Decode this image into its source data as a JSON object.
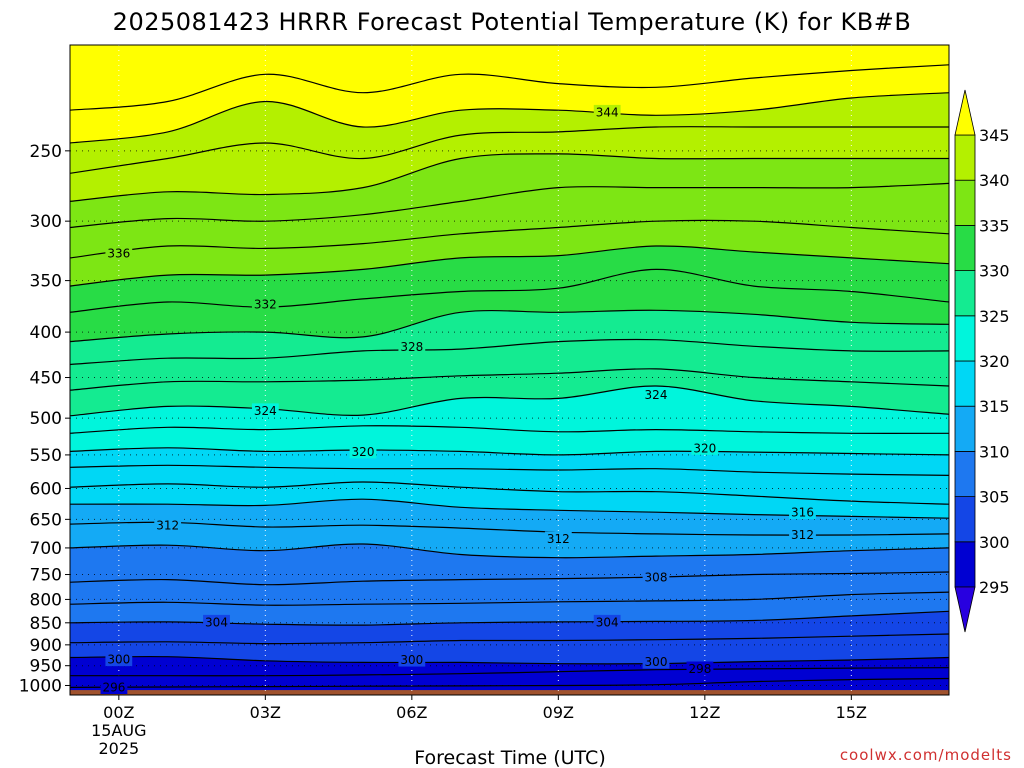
{
  "title": "2025081423 HRRR Forecast Potential Temperature (K) for KB#B",
  "credit": "coolwx.com/modelts",
  "colors": {
    "ground": "#a0522d",
    "bands": [
      {
        "from": 290,
        "to": 295,
        "color": "#2800e0"
      },
      {
        "from": 295,
        "to": 300,
        "color": "#0000d2"
      },
      {
        "from": 300,
        "to": 305,
        "color": "#1446e6"
      },
      {
        "from": 305,
        "to": 310,
        "color": "#1e78f0"
      },
      {
        "from": 310,
        "to": 315,
        "color": "#14aaf5"
      },
      {
        "from": 315,
        "to": 320,
        "color": "#00d7f5"
      },
      {
        "from": 320,
        "to": 325,
        "color": "#00f5dc"
      },
      {
        "from": 325,
        "to": 330,
        "color": "#14eb91"
      },
      {
        "from": 330,
        "to": 335,
        "color": "#28dc46"
      },
      {
        "from": 335,
        "to": 340,
        "color": "#7de614"
      },
      {
        "from": 340,
        "to": 345,
        "color": "#b4f000"
      },
      {
        "from": 345,
        "to": 350,
        "color": "#ffff00"
      }
    ]
  },
  "chart_data": {
    "type": "heatmap",
    "title": "2025081423 HRRR Forecast Potential Temperature (K) for KB#B",
    "xlabel": "Forecast Time (UTC)",
    "ylabel": "",
    "x_ticks": [
      {
        "hour": 0,
        "label": "00Z",
        "sub1": "15AUG",
        "sub2": "2025"
      },
      {
        "hour": 3,
        "label": "03Z",
        "sub1": "",
        "sub2": ""
      },
      {
        "hour": 6,
        "label": "06Z",
        "sub1": "",
        "sub2": ""
      },
      {
        "hour": 9,
        "label": "09Z",
        "sub1": "",
        "sub2": ""
      },
      {
        "hour": 12,
        "label": "12Z",
        "sub1": "",
        "sub2": ""
      },
      {
        "hour": 15,
        "label": "15Z",
        "sub1": "",
        "sub2": ""
      }
    ],
    "xlim": [
      -1,
      17
    ],
    "ylim_hpa": [
      1025,
      190
    ],
    "y_axis": "pressure (hPa, log scale, inverted)",
    "y_ticks": [
      250,
      300,
      350,
      400,
      450,
      500,
      550,
      600,
      650,
      700,
      750,
      800,
      850,
      900,
      950,
      1000
    ],
    "y_tick_labels": [
      "250",
      "300",
      "350",
      "400",
      "450",
      "500",
      "550",
      "600",
      "650",
      "700",
      "750",
      "800",
      "850",
      "900",
      "950",
      "1000"
    ],
    "colorbar": {
      "ticks": [
        295,
        300,
        305,
        310,
        315,
        320,
        325,
        330,
        335,
        340,
        345
      ],
      "labels": [
        "295",
        "300",
        "305",
        "310",
        "315",
        "320",
        "325",
        "330",
        "335",
        "340",
        "345"
      ],
      "extend": "both"
    },
    "hours": [
      -1,
      1,
      3,
      5,
      7,
      9,
      11,
      13,
      15,
      17
    ],
    "isentropes": [
      {
        "theta": 296,
        "pressure": [
          1005,
          1004,
          1003,
          1002,
          1001,
          1000,
          998,
          990,
          985,
          982
        ]
      },
      {
        "theta": 298,
        "pressure": [
          975,
          975,
          975,
          973,
          970,
          965,
          960,
          958,
          956,
          955
        ]
      },
      {
        "theta": 300,
        "pressure": [
          930,
          928,
          938,
          942,
          942,
          945,
          945,
          940,
          936,
          930
        ]
      },
      {
        "theta": 302,
        "pressure": [
          895,
          893,
          897,
          895,
          890,
          890,
          888,
          885,
          880,
          875
        ]
      },
      {
        "theta": 304,
        "pressure": [
          850,
          848,
          853,
          855,
          850,
          848,
          847,
          845,
          835,
          825
        ]
      },
      {
        "theta": 306,
        "pressure": [
          810,
          806,
          812,
          810,
          808,
          805,
          803,
          800,
          790,
          785
        ]
      },
      {
        "theta": 308,
        "pressure": [
          765,
          760,
          770,
          763,
          760,
          758,
          755,
          750,
          748,
          745
        ]
      },
      {
        "theta": 310,
        "pressure": [
          700,
          695,
          705,
          693,
          712,
          718,
          715,
          712,
          705,
          700
        ]
      },
      {
        "theta": 312,
        "pressure": [
          658,
          655,
          663,
          660,
          665,
          672,
          675,
          677,
          677,
          675
        ]
      },
      {
        "theta": 314,
        "pressure": [
          625,
          625,
          627,
          617,
          630,
          635,
          638,
          642,
          645,
          648
        ]
      },
      {
        "theta": 316,
        "pressure": [
          598,
          593,
          598,
          590,
          598,
          605,
          605,
          612,
          620,
          625
        ]
      },
      {
        "theta": 318,
        "pressure": [
          568,
          565,
          568,
          570,
          570,
          572,
          570,
          575,
          578,
          580
        ]
      },
      {
        "theta": 320,
        "pressure": [
          545,
          540,
          545,
          543,
          545,
          550,
          545,
          546,
          548,
          550
        ]
      },
      {
        "theta": 322,
        "pressure": [
          520,
          512,
          515,
          510,
          512,
          518,
          515,
          518,
          520,
          520
        ]
      },
      {
        "theta": 324,
        "pressure": [
          497,
          485,
          488,
          496,
          475,
          475,
          460,
          478,
          485,
          495
        ]
      },
      {
        "theta": 326,
        "pressure": [
          465,
          455,
          455,
          453,
          448,
          445,
          440,
          450,
          455,
          460
        ]
      },
      {
        "theta": 328,
        "pressure": [
          435,
          428,
          428,
          420,
          418,
          410,
          408,
          415,
          420,
          420
        ]
      },
      {
        "theta": 330,
        "pressure": [
          410,
          402,
          400,
          405,
          380,
          380,
          378,
          382,
          390,
          392
        ]
      },
      {
        "theta": 332,
        "pressure": [
          380,
          370,
          375,
          367,
          360,
          357,
          340,
          355,
          360,
          370
        ]
      },
      {
        "theta": 334,
        "pressure": [
          355,
          345,
          345,
          340,
          330,
          328,
          320,
          325,
          330,
          335
        ]
      },
      {
        "theta": 336,
        "pressure": [
          330,
          320,
          322,
          318,
          310,
          305,
          300,
          300,
          305,
          310
        ]
      },
      {
        "theta": 338,
        "pressure": [
          305,
          298,
          300,
          295,
          285,
          275,
          275,
          275,
          275,
          272
        ]
      },
      {
        "theta": 340,
        "pressure": [
          285,
          278,
          280,
          275,
          255,
          252,
          255,
          255,
          255,
          255
        ]
      },
      {
        "theta": 342,
        "pressure": [
          265,
          255,
          245,
          255,
          240,
          238,
          235,
          235,
          235,
          235
        ]
      },
      {
        "theta": 344,
        "pressure": [
          245,
          238,
          220,
          235,
          225,
          225,
          228,
          225,
          218,
          215
        ]
      },
      {
        "theta": 346,
        "pressure": [
          225,
          220,
          205,
          215,
          205,
          210,
          212,
          207,
          203,
          200
        ]
      }
    ],
    "contour_labels": [
      {
        "text": "296",
        "hour": -0.1,
        "pressure": 1004
      },
      {
        "text": "300",
        "hour": 0,
        "pressure": 934
      },
      {
        "text": "300",
        "hour": 6,
        "pressure": 935
      },
      {
        "text": "300",
        "hour": 11,
        "pressure": 940
      },
      {
        "text": "298",
        "hour": 11.9,
        "pressure": 957
      },
      {
        "text": "304",
        "hour": 2,
        "pressure": 848
      },
      {
        "text": "304",
        "hour": 10,
        "pressure": 848
      },
      {
        "text": "308",
        "hour": 11,
        "pressure": 755
      },
      {
        "text": "312",
        "hour": 1,
        "pressure": 660
      },
      {
        "text": "312",
        "hour": 9,
        "pressure": 683
      },
      {
        "text": "312",
        "hour": 14,
        "pressure": 676
      },
      {
        "text": "316",
        "hour": 14,
        "pressure": 638
      },
      {
        "text": "320",
        "hour": 5,
        "pressure": 545
      },
      {
        "text": "320",
        "hour": 12,
        "pressure": 540
      },
      {
        "text": "324",
        "hour": 3,
        "pressure": 490
      },
      {
        "text": "324",
        "hour": 11,
        "pressure": 470
      },
      {
        "text": "328",
        "hour": 6,
        "pressure": 415
      },
      {
        "text": "332",
        "hour": 3,
        "pressure": 372
      },
      {
        "text": "336",
        "hour": 0,
        "pressure": 326
      },
      {
        "text": "344",
        "hour": 10,
        "pressure": 226
      }
    ]
  }
}
